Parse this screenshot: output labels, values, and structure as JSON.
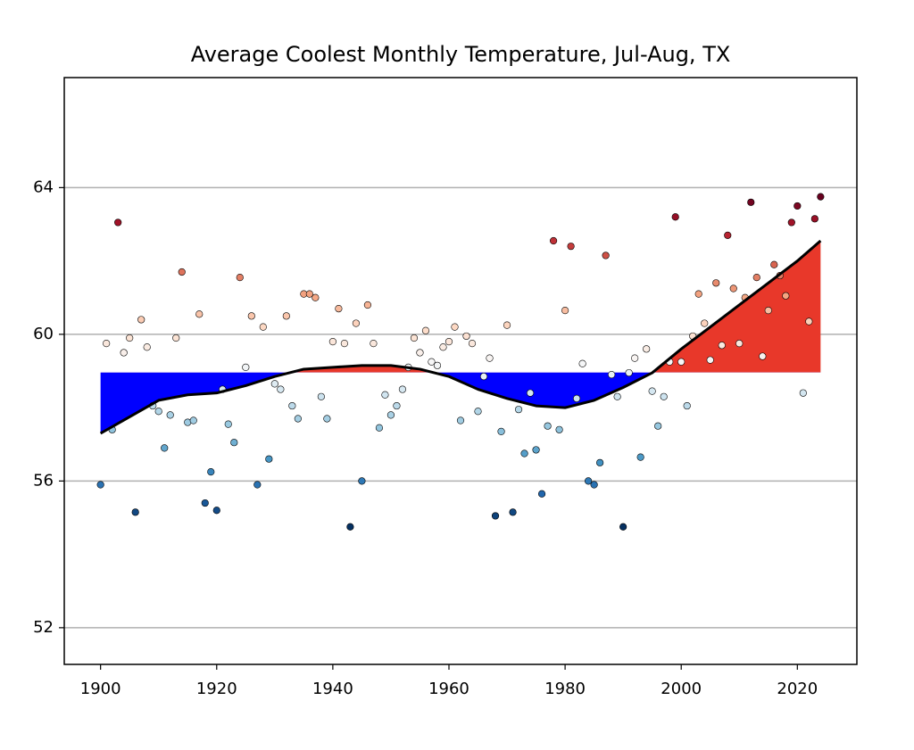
{
  "chart_data": {
    "type": "scatter",
    "title": "Average Coolest Monthly Temperature, Jul-Aug, TX",
    "x": [
      1900,
      1901,
      1902,
      1903,
      1904,
      1905,
      1906,
      1907,
      1908,
      1909,
      1910,
      1911,
      1912,
      1913,
      1914,
      1915,
      1916,
      1917,
      1918,
      1919,
      1920,
      1921,
      1922,
      1923,
      1924,
      1925,
      1926,
      1927,
      1928,
      1929,
      1930,
      1931,
      1932,
      1933,
      1934,
      1935,
      1936,
      1937,
      1938,
      1939,
      1940,
      1941,
      1942,
      1943,
      1944,
      1945,
      1946,
      1947,
      1948,
      1949,
      1950,
      1951,
      1952,
      1953,
      1954,
      1955,
      1956,
      1957,
      1958,
      1959,
      1960,
      1961,
      1962,
      1963,
      1964,
      1965,
      1966,
      1967,
      1968,
      1969,
      1970,
      1971,
      1972,
      1973,
      1974,
      1975,
      1976,
      1977,
      1978,
      1979,
      1980,
      1981,
      1982,
      1983,
      1984,
      1985,
      1986,
      1987,
      1988,
      1989,
      1990,
      1991,
      1992,
      1993,
      1994,
      1995,
      1996,
      1997,
      1998,
      1999,
      2000,
      2001,
      2002,
      2003,
      2004,
      2005,
      2006,
      2007,
      2008,
      2009,
      2010,
      2011,
      2012,
      2013,
      2014,
      2015,
      2016,
      2017,
      2018,
      2019,
      2020,
      2021,
      2022,
      2023,
      2024
    ],
    "series": [
      {
        "values": [
          55.9,
          59.75,
          57.4,
          63.05,
          59.5,
          59.9,
          55.15,
          60.4,
          59.65,
          58.05,
          57.9,
          56.9,
          57.8,
          59.9,
          61.7,
          57.6,
          57.65,
          60.55,
          55.4,
          56.25,
          55.2,
          58.5,
          57.55,
          57.05,
          61.55,
          59.1,
          60.5,
          55.9,
          60.2,
          56.6,
          58.65,
          58.5,
          60.5,
          58.05,
          57.7,
          61.1,
          61.1,
          61.0,
          58.3,
          57.7,
          59.8,
          60.7,
          59.75,
          54.75,
          60.3,
          56.0,
          60.8,
          59.75,
          57.45,
          58.35,
          57.8,
          58.05,
          58.5,
          59.1,
          59.9,
          59.5,
          60.1,
          59.25,
          59.15,
          59.65,
          59.8,
          60.2,
          57.65,
          59.95,
          59.75,
          57.9,
          58.85,
          59.35,
          55.05,
          57.35,
          60.25,
          55.15,
          57.95,
          56.75,
          58.4,
          56.85,
          55.65,
          57.5,
          62.55,
          57.4,
          60.65,
          62.4,
          58.25,
          59.2,
          56.0,
          55.9,
          56.5,
          62.15,
          58.9,
          58.3,
          54.75,
          58.95,
          59.35,
          56.65,
          59.6,
          58.45,
          57.5,
          58.3,
          59.25,
          63.2,
          59.25,
          58.05,
          59.95,
          61.1,
          60.3,
          59.3,
          61.4,
          59.7,
          62.7,
          61.25,
          59.75,
          61.0,
          63.6,
          61.55,
          59.4,
          60.65,
          61.9,
          61.6,
          61.05,
          63.05,
          63.5,
          58.4,
          60.35,
          63.15,
          63.75
        ]
      }
    ],
    "colormap": [
      "#053061",
      "#2166ac",
      "#4393c3",
      "#92c5de",
      "#d1e5f0",
      "#f7f7f7",
      "#fddbc7",
      "#f4a582",
      "#d6604d",
      "#b2182b",
      "#67001f"
    ],
    "trend": {
      "color": "#000000",
      "x": [
        1900,
        1905,
        1910,
        1915,
        1920,
        1925,
        1930,
        1935,
        1940,
        1945,
        1950,
        1955,
        1960,
        1965,
        1970,
        1975,
        1980,
        1985,
        1990,
        1995,
        2000,
        2005,
        2010,
        2015,
        2020,
        2024
      ],
      "values": [
        57.3,
        57.75,
        58.2,
        58.35,
        58.4,
        58.6,
        58.85,
        59.05,
        59.1,
        59.15,
        59.15,
        59.05,
        58.85,
        58.5,
        58.25,
        58.05,
        58.0,
        58.2,
        58.55,
        58.95,
        59.6,
        60.2,
        60.8,
        61.4,
        62.0,
        62.55
      ]
    },
    "baseline": 58.96,
    "above_color": "#e8382a",
    "below_color": "#0000ff",
    "xlim": [
      1893.75,
      2030.25
    ],
    "ylim": [
      51,
      67
    ],
    "xticks": [
      1900,
      1920,
      1940,
      1960,
      1980,
      2000,
      2020
    ],
    "yticks": [
      52,
      56,
      60,
      64
    ],
    "grid": true
  }
}
